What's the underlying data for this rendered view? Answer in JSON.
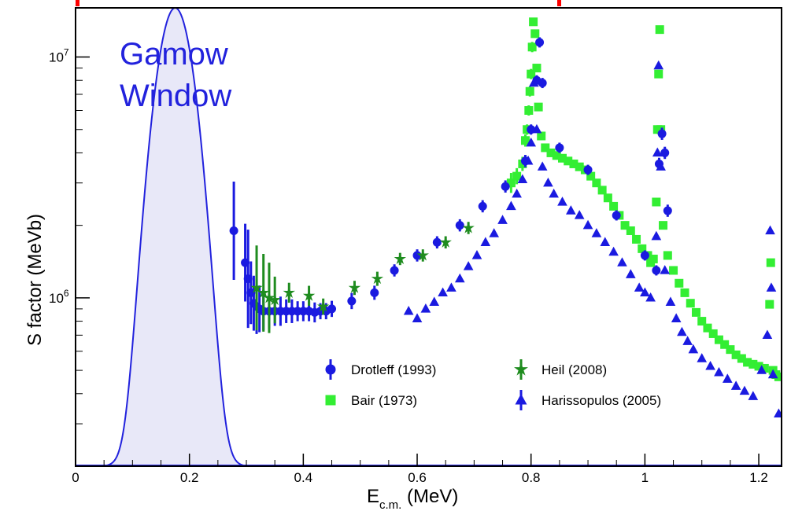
{
  "chart_data": {
    "type": "scatter",
    "title": "",
    "xlabel_main": "E",
    "xlabel_sub": "c.m.",
    "xlabel_unit": " (MeV)",
    "ylabel": "S factor (MeVb)",
    "xlim": [
      0,
      1.24
    ],
    "ylim": [
      200000,
      16000000
    ],
    "yscale": "log",
    "x_ticks": [
      "0",
      "0.2",
      "0.4",
      "0.6",
      "0.8",
      "1",
      "1.2"
    ],
    "x_tick_values": [
      0,
      0.2,
      0.4,
      0.6,
      0.8,
      1.0,
      1.2
    ],
    "y_ticks": [
      {
        "value": 1000000,
        "base": "10",
        "exp": "6"
      },
      {
        "value": 10000000,
        "base": "10",
        "exp": "7"
      }
    ],
    "annotation": {
      "line1": "Gamow",
      "line2": "Window",
      "color": "#2222dd"
    },
    "gamow_window": {
      "center": 0.175,
      "sigma": 0.028,
      "peak": 16000000,
      "baseline": 200000,
      "fill": "#e8e8f8",
      "stroke": "#2222dd"
    },
    "legend_position": "lower-right",
    "series": [
      {
        "name": "Drotleff (1993)",
        "marker": "circle",
        "color": "#1a1ae0",
        "points": [
          [
            0.278,
            1900000,
            1.6
          ],
          [
            0.298,
            1400000,
            1.45
          ],
          [
            0.303,
            1200000,
            1.6
          ],
          [
            0.308,
            1050000,
            1.35
          ],
          [
            0.313,
            950000,
            1.3
          ],
          [
            0.318,
            920000,
            1.3
          ],
          [
            0.323,
            900000,
            1.25
          ],
          [
            0.33,
            880000,
            1.2
          ],
          [
            0.34,
            880000,
            1.18
          ],
          [
            0.35,
            880000,
            1.15
          ],
          [
            0.36,
            880000,
            1.15
          ],
          [
            0.37,
            880000,
            1.12
          ],
          [
            0.38,
            880000,
            1.12
          ],
          [
            0.39,
            880000,
            1.1
          ],
          [
            0.4,
            880000,
            1.1
          ],
          [
            0.41,
            880000,
            1.1
          ],
          [
            0.42,
            870000,
            1.1
          ],
          [
            0.43,
            880000,
            1.08
          ],
          [
            0.44,
            880000,
            1.08
          ],
          [
            0.45,
            900000,
            1.08
          ],
          [
            0.485,
            970000,
            1.08
          ],
          [
            0.525,
            1050000,
            1.07
          ],
          [
            0.56,
            1300000,
            1.06
          ],
          [
            0.6,
            1500000,
            1.06
          ],
          [
            0.635,
            1700000,
            1.06
          ],
          [
            0.675,
            2000000,
            1.06
          ],
          [
            0.715,
            2400000,
            1.06
          ],
          [
            0.755,
            2900000,
            1.06
          ],
          [
            0.79,
            3700000,
            1.06
          ],
          [
            0.8,
            5000000,
            1.05
          ],
          [
            0.81,
            8000000,
            1.05
          ],
          [
            0.815,
            11500000,
            1.05
          ],
          [
            0.82,
            7800000,
            1.05
          ],
          [
            0.85,
            4200000,
            1.05
          ],
          [
            0.9,
            3400000,
            1.05
          ],
          [
            0.95,
            2200000,
            1.05
          ],
          [
            1.0,
            1500000,
            1.05
          ],
          [
            1.02,
            1300000,
            1.05
          ],
          [
            1.025,
            3600000,
            1.06
          ],
          [
            1.03,
            4800000,
            1.06
          ],
          [
            1.035,
            4000000,
            1.06
          ],
          [
            1.04,
            2300000,
            1.06
          ]
        ]
      },
      {
        "name": "Bair (1973)",
        "marker": "square",
        "color": "#33ee33",
        "points": [
          [
            0.765,
            3000000,
            1.1
          ],
          [
            0.775,
            3200000,
            1.08
          ],
          [
            0.785,
            3600000,
            1.07
          ],
          [
            0.79,
            4500000,
            1.06
          ],
          [
            0.793,
            5000000,
            1.05
          ],
          [
            0.796,
            6000000,
            1.05
          ],
          [
            0.798,
            7200000,
            1.05
          ],
          [
            0.8,
            8500000,
            1.05
          ],
          [
            0.802,
            11000000,
            1.05
          ],
          [
            0.804,
            14000000,
            1.04
          ],
          [
            0.807,
            12500000,
            1.04
          ],
          [
            0.81,
            9000000,
            1.04
          ],
          [
            0.813,
            6200000,
            1.04
          ],
          [
            0.818,
            4700000,
            1.04
          ],
          [
            0.825,
            4200000,
            1.04
          ],
          [
            0.835,
            4000000,
            1.04
          ],
          [
            0.845,
            3900000,
            1.04
          ],
          [
            0.855,
            3800000,
            1.04
          ],
          [
            0.865,
            3700000,
            1.04
          ],
          [
            0.875,
            3600000,
            1.04
          ],
          [
            0.885,
            3500000,
            1.04
          ],
          [
            0.895,
            3400000,
            1.04
          ],
          [
            0.905,
            3200000,
            1.04
          ],
          [
            0.915,
            3000000,
            1.04
          ],
          [
            0.925,
            2800000,
            1.04
          ],
          [
            0.935,
            2600000,
            1.04
          ],
          [
            0.945,
            2400000,
            1.04
          ],
          [
            0.955,
            2200000,
            1.04
          ],
          [
            0.965,
            2000000,
            1.04
          ],
          [
            0.975,
            1900000,
            1.04
          ],
          [
            0.985,
            1750000,
            1.04
          ],
          [
            0.995,
            1600000,
            1.04
          ],
          [
            1.005,
            1500000,
            1.04
          ],
          [
            1.01,
            1400000,
            1.04
          ],
          [
            1.015,
            1450000,
            1.04
          ],
          [
            1.02,
            2500000,
            1.04
          ],
          [
            1.022,
            5000000,
            1.04
          ],
          [
            1.024,
            8500000,
            1.04
          ],
          [
            1.026,
            13000000,
            1.04
          ],
          [
            1.028,
            5000000,
            1.04
          ],
          [
            1.032,
            2000000,
            1.04
          ],
          [
            1.04,
            1500000,
            1.04
          ],
          [
            1.05,
            1300000,
            1.04
          ],
          [
            1.06,
            1150000,
            1.04
          ],
          [
            1.07,
            1050000,
            1.04
          ],
          [
            1.08,
            950000,
            1.04
          ],
          [
            1.09,
            870000,
            1.04
          ],
          [
            1.1,
            800000,
            1.04
          ],
          [
            1.11,
            750000,
            1.04
          ],
          [
            1.12,
            710000,
            1.04
          ],
          [
            1.13,
            670000,
            1.04
          ],
          [
            1.14,
            640000,
            1.04
          ],
          [
            1.15,
            610000,
            1.04
          ],
          [
            1.16,
            580000,
            1.04
          ],
          [
            1.17,
            560000,
            1.04
          ],
          [
            1.18,
            540000,
            1.04
          ],
          [
            1.19,
            530000,
            1.04
          ],
          [
            1.2,
            520000,
            1.04
          ],
          [
            1.21,
            510000,
            1.04
          ],
          [
            1.219,
            940000,
            1.04
          ],
          [
            1.221,
            1400000,
            1.04
          ],
          [
            1.225,
            500000,
            1.04
          ],
          [
            1.23,
            480000,
            1.04
          ],
          [
            1.235,
            470000,
            1.04
          ]
        ]
      },
      {
        "name": "Heil (2008)",
        "marker": "star",
        "color": "#1f8c1f",
        "points": [
          [
            0.318,
            1100000,
            1.5
          ],
          [
            0.33,
            1050000,
            1.45
          ],
          [
            0.34,
            1000000,
            1.4
          ],
          [
            0.35,
            980000,
            1.25
          ],
          [
            0.375,
            1050000,
            1.1
          ],
          [
            0.41,
            1020000,
            1.1
          ],
          [
            0.435,
            920000,
            1.08
          ],
          [
            0.49,
            1100000,
            1.07
          ],
          [
            0.53,
            1200000,
            1.07
          ],
          [
            0.57,
            1450000,
            1.06
          ],
          [
            0.61,
            1500000,
            1.06
          ],
          [
            0.65,
            1700000,
            1.06
          ],
          [
            0.69,
            1950000,
            1.06
          ]
        ]
      },
      {
        "name": "Harissopulos (2005)",
        "marker": "triangle",
        "color": "#1a1ae0",
        "points": [
          [
            0.585,
            880000,
            1.04
          ],
          [
            0.6,
            820000,
            1.04
          ],
          [
            0.615,
            900000,
            1.04
          ],
          [
            0.63,
            960000,
            1.04
          ],
          [
            0.645,
            1050000,
            1.04
          ],
          [
            0.66,
            1100000,
            1.04
          ],
          [
            0.675,
            1200000,
            1.04
          ],
          [
            0.69,
            1350000,
            1.04
          ],
          [
            0.705,
            1500000,
            1.04
          ],
          [
            0.72,
            1700000,
            1.04
          ],
          [
            0.735,
            1850000,
            1.04
          ],
          [
            0.75,
            2100000,
            1.04
          ],
          [
            0.765,
            2400000,
            1.04
          ],
          [
            0.775,
            2700000,
            1.04
          ],
          [
            0.785,
            3100000,
            1.04
          ],
          [
            0.795,
            3700000,
            1.04
          ],
          [
            0.8,
            4400000,
            1.04
          ],
          [
            0.805,
            7800000,
            1.04
          ],
          [
            0.81,
            5000000,
            1.04
          ],
          [
            0.82,
            3500000,
            1.04
          ],
          [
            0.83,
            3000000,
            1.04
          ],
          [
            0.84,
            2700000,
            1.04
          ],
          [
            0.855,
            2500000,
            1.04
          ],
          [
            0.87,
            2300000,
            1.04
          ],
          [
            0.885,
            2200000,
            1.04
          ],
          [
            0.9,
            2000000,
            1.04
          ],
          [
            0.915,
            1850000,
            1.04
          ],
          [
            0.93,
            1700000,
            1.04
          ],
          [
            0.945,
            1550000,
            1.04
          ],
          [
            0.96,
            1400000,
            1.04
          ],
          [
            0.975,
            1250000,
            1.04
          ],
          [
            0.99,
            1100000,
            1.04
          ],
          [
            1.0,
            1050000,
            1.04
          ],
          [
            1.01,
            1000000,
            1.04
          ],
          [
            1.02,
            1800000,
            1.04
          ],
          [
            1.022,
            4000000,
            1.04
          ],
          [
            1.024,
            9200000,
            1.04
          ],
          [
            1.028,
            3500000,
            1.04
          ],
          [
            1.035,
            1300000,
            1.04
          ],
          [
            1.045,
            960000,
            1.04
          ],
          [
            1.055,
            820000,
            1.04
          ],
          [
            1.065,
            720000,
            1.04
          ],
          [
            1.075,
            660000,
            1.04
          ],
          [
            1.085,
            610000,
            1.04
          ],
          [
            1.1,
            560000,
            1.04
          ],
          [
            1.115,
            520000,
            1.04
          ],
          [
            1.13,
            490000,
            1.04
          ],
          [
            1.145,
            460000,
            1.04
          ],
          [
            1.16,
            430000,
            1.04
          ],
          [
            1.175,
            410000,
            1.04
          ],
          [
            1.19,
            390000,
            1.04
          ],
          [
            1.205,
            500000,
            1.04
          ],
          [
            1.215,
            700000,
            1.04
          ],
          [
            1.22,
            1900000,
            1.04
          ],
          [
            1.222,
            1100000,
            1.04
          ],
          [
            1.225,
            480000,
            1.04
          ],
          [
            1.235,
            330000,
            1.04
          ]
        ]
      }
    ]
  }
}
